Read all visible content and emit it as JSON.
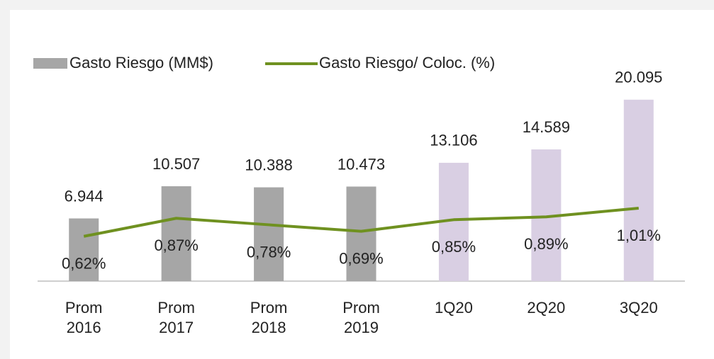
{
  "chart_data": {
    "type": "bar-line",
    "categories": [
      "Prom 2016",
      "Prom 2017",
      "Prom 2018",
      "Prom 2019",
      "1Q20",
      "2Q20",
      "3Q20"
    ],
    "series": [
      {
        "name": "Gasto Riesgo (MM$)",
        "type": "bar",
        "colors": [
          "#a6a6a6",
          "#a6a6a6",
          "#a6a6a6",
          "#a6a6a6",
          "#d9cfe3",
          "#d9cfe3",
          "#d9cfe3"
        ],
        "values": [
          6944,
          10507,
          10388,
          10473,
          13106,
          14589,
          20095
        ],
        "value_labels": [
          "6.944",
          "10.507",
          "10.388",
          "10.473",
          "13.106",
          "14.589",
          "20.095"
        ]
      },
      {
        "name": "Gasto Riesgo/ Coloc. (%)",
        "type": "line",
        "axis": "y2",
        "color": "#6f9120",
        "values": [
          0.62,
          0.87,
          0.78,
          0.69,
          0.85,
          0.89,
          1.01
        ],
        "value_labels": [
          "0,62%",
          "0,87%",
          "0,78%",
          "0,69%",
          "0,85%",
          "0,89%",
          "1,01%"
        ]
      }
    ],
    "ylim": [
      0,
      28000
    ],
    "y2lim": [
      0,
      3.5
    ]
  }
}
